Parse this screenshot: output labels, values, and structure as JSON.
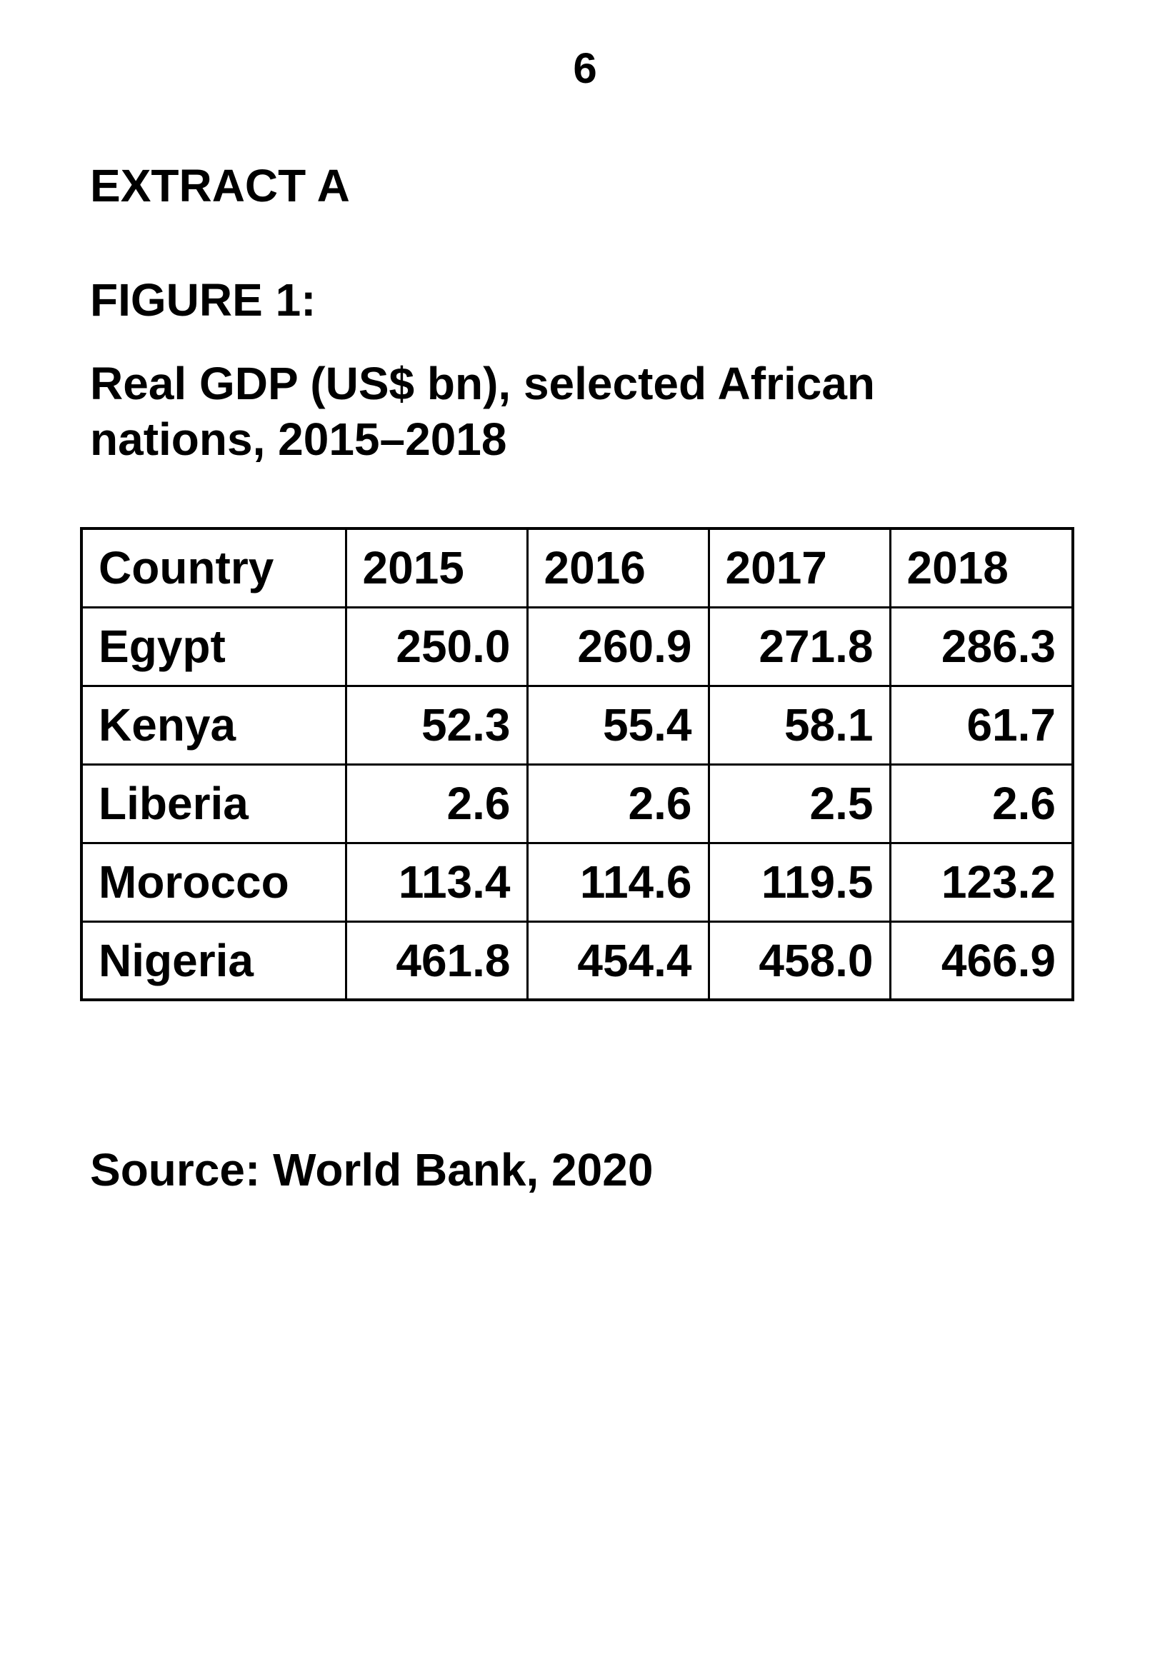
{
  "page_number": "6",
  "extract_heading": "EXTRACT A",
  "figure": {
    "label": "FIGURE 1:",
    "title_line1": "Real GDP (US$ bn), selected African",
    "title_line2": "nations, 2015–2018"
  },
  "table": {
    "headers": [
      "Country",
      "2015",
      "2016",
      "2017",
      "2018"
    ],
    "rows": [
      [
        "Egypt",
        "250.0",
        "260.9",
        "271.8",
        "286.3"
      ],
      [
        "Kenya",
        "52.3",
        "55.4",
        "58.1",
        "61.7"
      ],
      [
        "Liberia",
        "2.6",
        "2.6",
        "2.5",
        "2.6"
      ],
      [
        "Morocco",
        "113.4",
        "114.6",
        "119.5",
        "123.2"
      ],
      [
        "Nigeria",
        "461.8",
        "454.4",
        "458.0",
        "466.9"
      ]
    ]
  },
  "source": "Source: World Bank, 2020"
}
